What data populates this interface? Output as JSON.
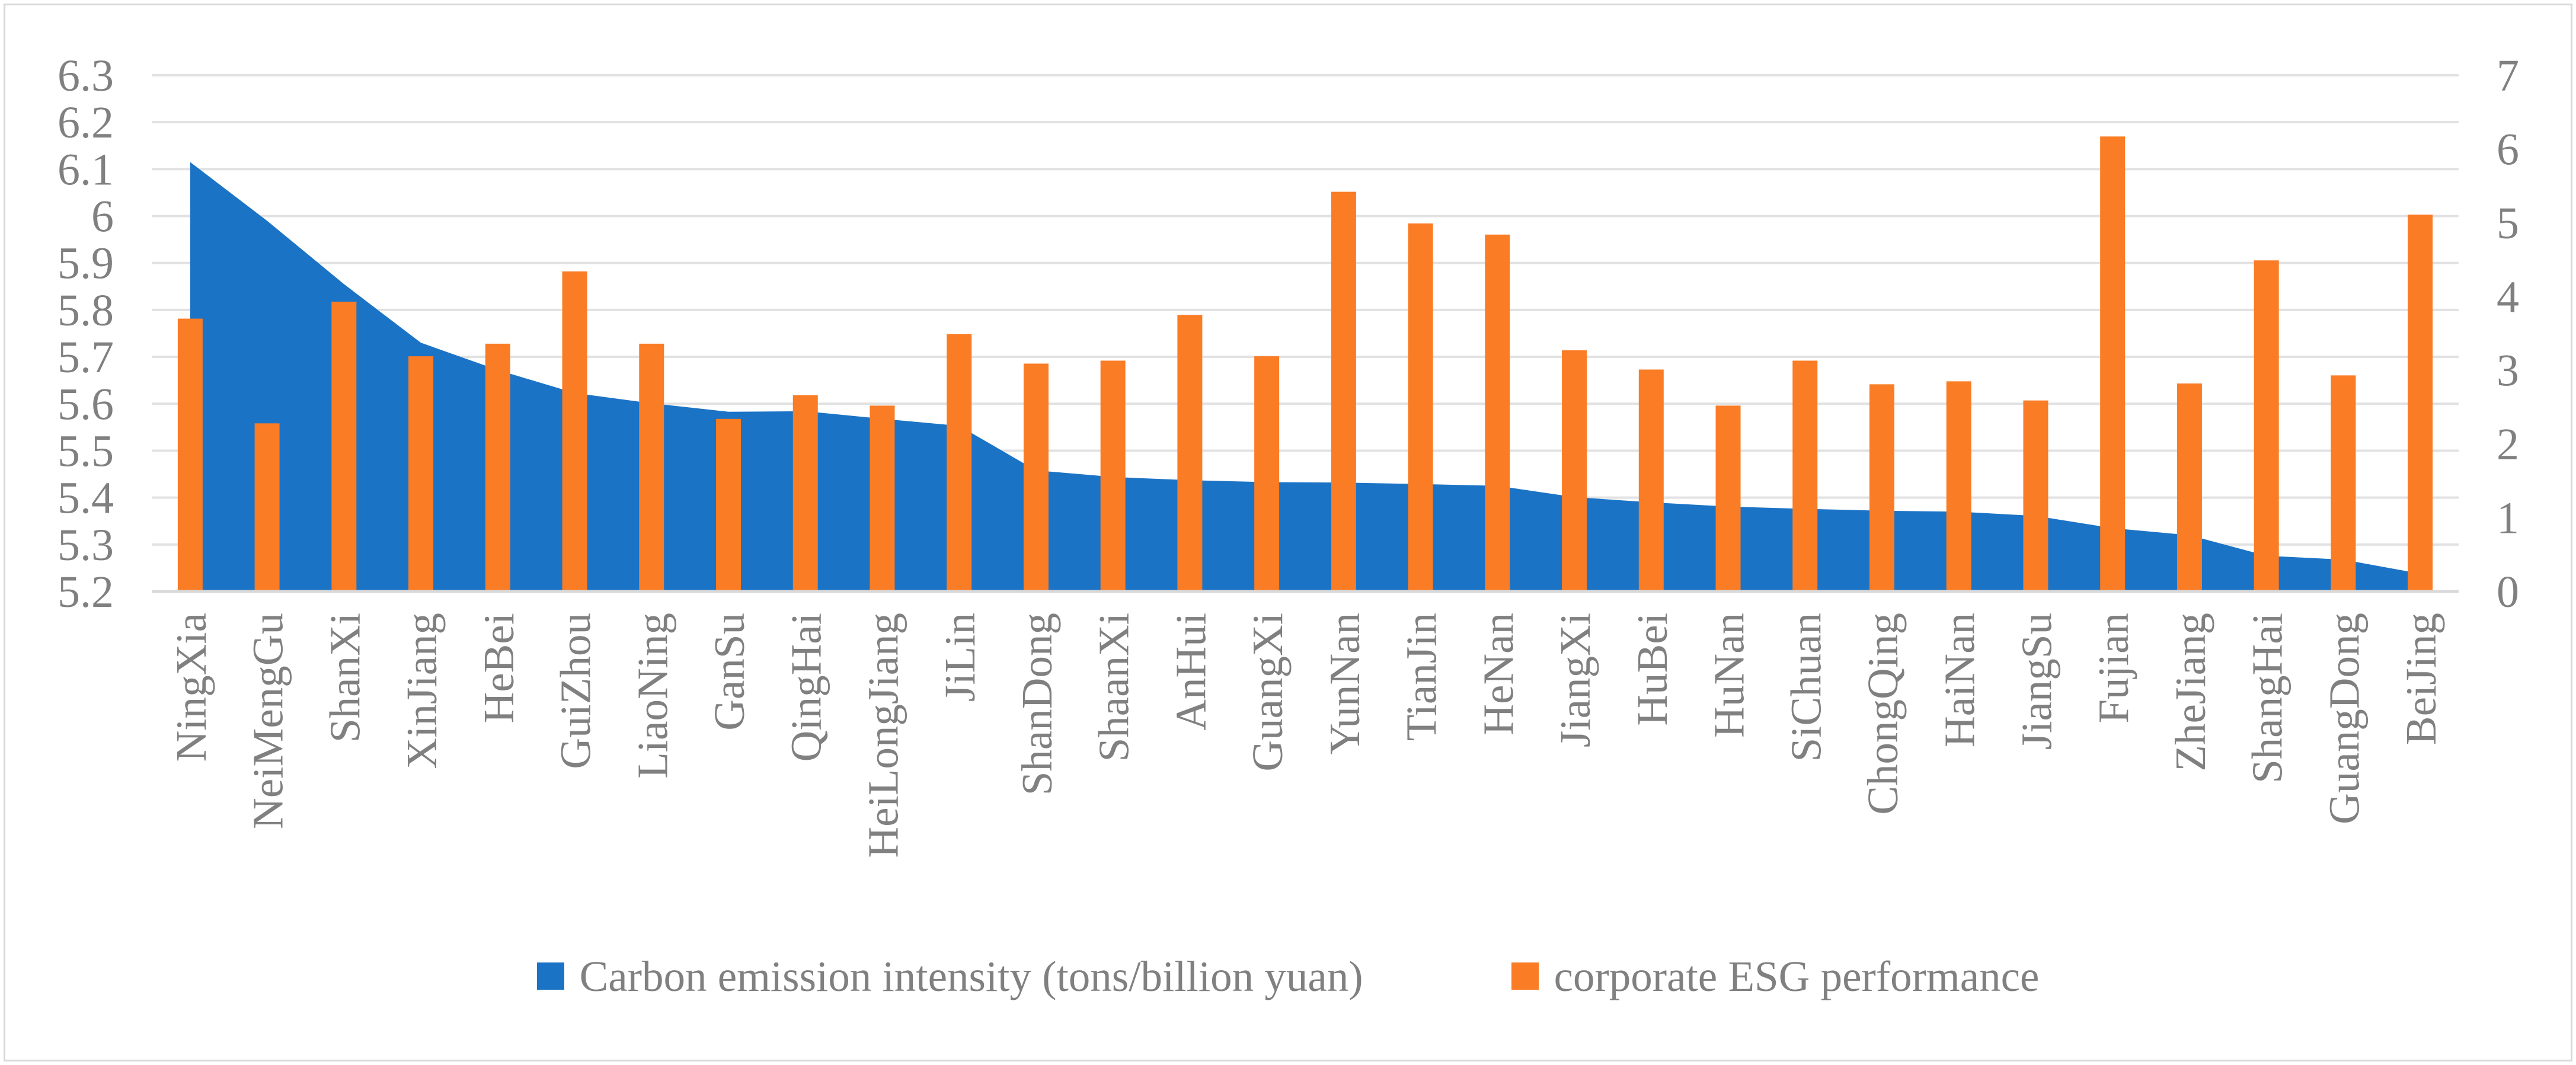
{
  "figure": {
    "background": "#FFFFFF",
    "border_color": "#D8D8D8",
    "text_color": "#808080",
    "gridline_color": "#E2E2E2",
    "axisline_color": "#D9D9D9"
  },
  "chart_data": {
    "type": "combo: area series on left axis + bar series on right axis",
    "title": "",
    "xlabel": "",
    "ylabel": "",
    "grid": true,
    "legend_position": "bottom",
    "categories": [
      "NingXia",
      "NeiMengGu",
      "ShanXi",
      "XinJiang",
      "HeBei",
      "GuiZhou",
      "LiaoNing",
      "GanSu",
      "QingHai",
      "HeiLongJiang",
      "JiLin",
      "ShanDong",
      "ShaanXi",
      "AnHui",
      "GuangXi",
      "YunNan",
      "TianJin",
      "HeNan",
      "JiangXi",
      "HuBei",
      "HuNan",
      "SiChuan",
      "ChongQing",
      "HaiNan",
      "JiangSu",
      "Fujian",
      "ZheJiang",
      "ShangHai",
      "GuangDong",
      "BeiJing"
    ],
    "series": [
      {
        "name": "Carbon emission intensity (tons/billion yuan)",
        "chart_type": "area",
        "axis": "left",
        "color": "#1B73C6",
        "values": [
          6.115,
          5.99,
          5.855,
          5.73,
          5.672,
          5.623,
          5.601,
          5.583,
          5.584,
          5.568,
          5.553,
          5.458,
          5.444,
          5.437,
          5.433,
          5.432,
          5.429,
          5.425,
          5.401,
          5.39,
          5.381,
          5.376,
          5.372,
          5.37,
          5.361,
          5.335,
          5.32,
          5.276,
          5.268,
          5.238
        ]
      },
      {
        "name": "corporate ESG performance",
        "chart_type": "bar",
        "axis": "right",
        "color": "#FA7C25",
        "values": [
          3.7,
          2.28,
          3.93,
          3.19,
          3.36,
          4.34,
          3.36,
          2.34,
          2.66,
          2.52,
          3.49,
          3.09,
          3.13,
          3.75,
          3.19,
          5.42,
          4.99,
          4.84,
          3.27,
          3.01,
          2.52,
          3.13,
          2.81,
          2.85,
          2.59,
          6.17,
          2.82,
          4.49,
          2.93,
          5.11
        ]
      }
    ],
    "left_axis": {
      "min": 5.2,
      "max": 6.3,
      "ticks": [
        {
          "v": 5.2,
          "label": "5.2"
        },
        {
          "v": 5.3,
          "label": "5.3"
        },
        {
          "v": 5.4,
          "label": "5.4"
        },
        {
          "v": 5.5,
          "label": "5.5"
        },
        {
          "v": 5.6,
          "label": "5.6"
        },
        {
          "v": 5.7,
          "label": "5.7"
        },
        {
          "v": 5.8,
          "label": "5.8"
        },
        {
          "v": 5.9,
          "label": "5.9"
        },
        {
          "v": 6.0,
          "label": "6"
        },
        {
          "v": 6.1,
          "label": "6.1"
        },
        {
          "v": 6.2,
          "label": "6.2"
        },
        {
          "v": 6.3,
          "label": "6.3"
        }
      ]
    },
    "right_axis": {
      "min": 0,
      "max": 7,
      "ticks": [
        {
          "v": 0,
          "label": "0"
        },
        {
          "v": 1,
          "label": "1"
        },
        {
          "v": 2,
          "label": "2"
        },
        {
          "v": 3,
          "label": "3"
        },
        {
          "v": 4,
          "label": "4"
        },
        {
          "v": 5,
          "label": "5"
        },
        {
          "v": 6,
          "label": "6"
        },
        {
          "v": 7,
          "label": "7"
        }
      ]
    }
  }
}
